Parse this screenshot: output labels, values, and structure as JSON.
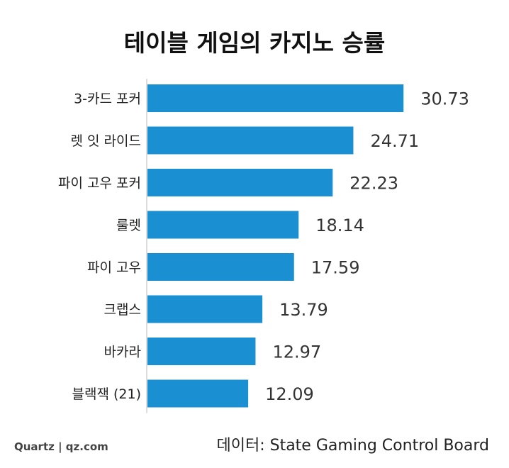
{
  "chart_data": {
    "type": "bar",
    "orientation": "horizontal",
    "title": "테이블 게임의 카지노 승률",
    "categories": [
      "3-카드 포커",
      "렛 잇 라이드",
      "파이 고우 포커",
      "룰렛",
      "파이 고우",
      "크랩스",
      "바카라",
      "블랙잭 (21)"
    ],
    "values": [
      30.73,
      24.71,
      22.23,
      18.14,
      17.59,
      13.79,
      12.97,
      12.09
    ],
    "value_labels": [
      "30.73",
      "24.71",
      "22.23",
      "18.14",
      "17.59",
      "13.79",
      "12.97",
      "12.09"
    ],
    "xlim": [
      0,
      32.5
    ],
    "grid": false,
    "bar_color": "#1a8fd1",
    "axis_color": "#bbbbbb"
  },
  "footer": {
    "credit": "Quartz | qz.com",
    "source": "데이터: State Gaming Control Board"
  }
}
